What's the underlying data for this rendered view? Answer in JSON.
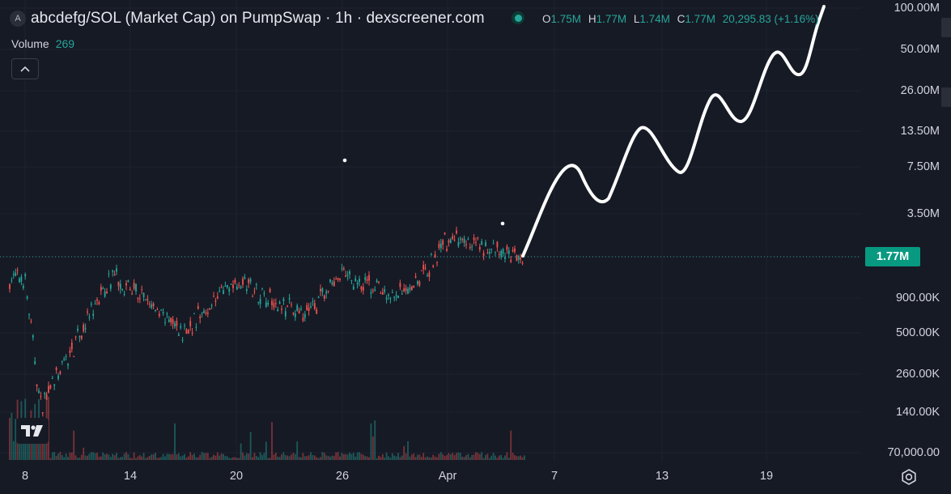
{
  "header": {
    "symbol_icon": "A",
    "title": "abcdefg/SOL (Market Cap) on PumpSwap · 1h · dexscreener.com",
    "status_icon": "live-status-icon",
    "ohlc": {
      "o_label": "O",
      "o_value": "1.75M",
      "h_label": "H",
      "h_value": "1.77M",
      "l_label": "L",
      "l_value": "1.74M",
      "c_label": "C",
      "c_value": "1.77M",
      "change": "20,295.83 (+1.16%)"
    },
    "volume_label": "Volume",
    "volume_value": "269",
    "collapse_icon": "chevron-up-icon"
  },
  "current_price": "1.77M",
  "price_axis": [
    "100.00M",
    "50.00M",
    "26.00M",
    "13.50M",
    "7.50M",
    "3.50M",
    "900.00K",
    "500.00K",
    "260.00K",
    "140.00K",
    "70,000.00"
  ],
  "time_axis": [
    "8",
    "14",
    "20",
    "26",
    "Apr",
    "7",
    "13",
    "19"
  ],
  "icons": {
    "settings": "gear-icon",
    "logo": "tradingview-logo-icon"
  },
  "colors": {
    "background": "#161a25",
    "up": "#26a69a",
    "down": "#ef5350",
    "price_badge": "#089981",
    "drawing": "#ffffff"
  },
  "chart_data": {
    "type": "candlestick",
    "scale": "log",
    "ylim": [
      "70,000.00",
      "100.00M"
    ],
    "x_tick_labels": [
      "8",
      "14",
      "20",
      "26",
      "Apr",
      "7",
      "13",
      "19"
    ],
    "last_price": "1.77M",
    "annotation": "hand-drawn white projection line rising from about 1.77M to about 100M",
    "volume_series": "histogram at bottom",
    "approx_trend_points_data_units": [
      {
        "x": "8",
        "y": 1200000
      },
      {
        "x": "9",
        "y": 150000
      },
      {
        "x": "13",
        "y": 1300000
      },
      {
        "x": "17",
        "y": 500000
      },
      {
        "x": "20",
        "y": 1200000
      },
      {
        "x": "24",
        "y": 650000
      },
      {
        "x": "26",
        "y": 1300000
      },
      {
        "x": "29",
        "y": 900000
      },
      {
        "x": "31",
        "y": 1400000
      },
      {
        "x": "Apr",
        "y": 2300000
      },
      {
        "x": "Apr 5",
        "y": 1700000
      }
    ]
  }
}
